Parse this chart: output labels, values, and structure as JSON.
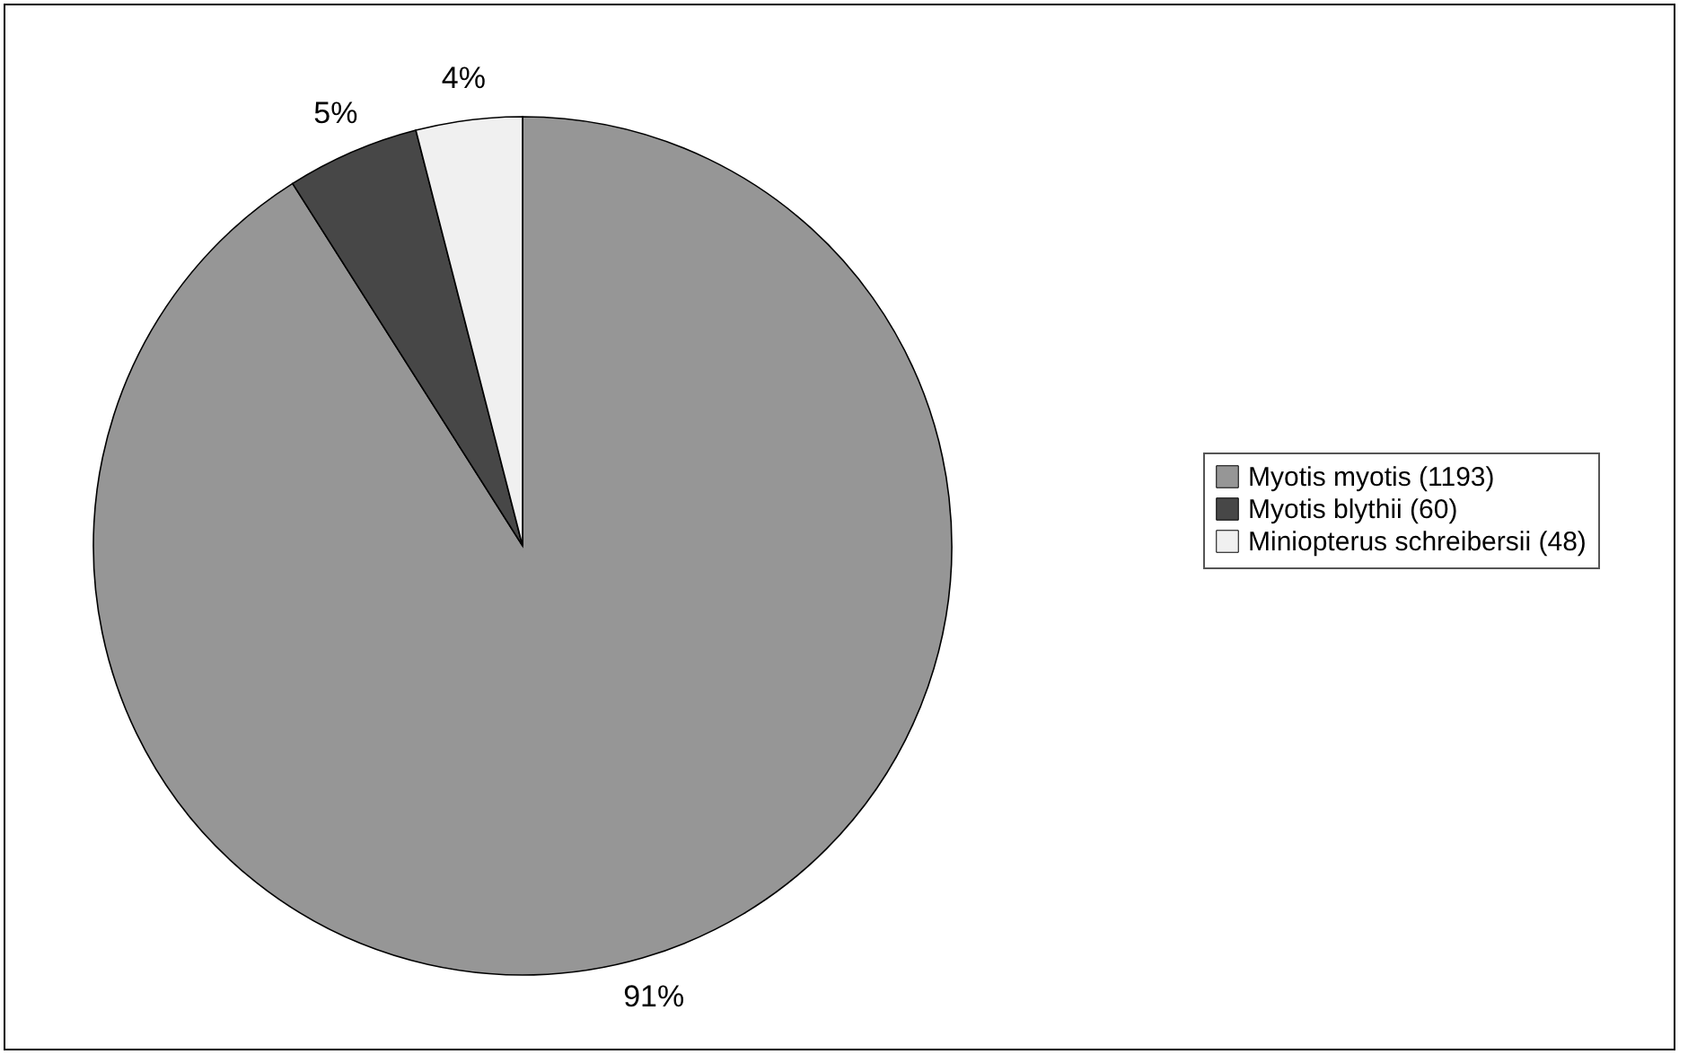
{
  "chart_data": {
    "type": "pie",
    "categories": [
      "Myotis myotis (1193)",
      "Myotis blythii (60)",
      "Miniopterus schreibersii (48)"
    ],
    "values": [
      91,
      5,
      4
    ],
    "colors": [
      "#969696",
      "#474747",
      "#f0f0f0"
    ],
    "value_labels": [
      "91%",
      "5%",
      "4%"
    ],
    "legend": "right"
  }
}
